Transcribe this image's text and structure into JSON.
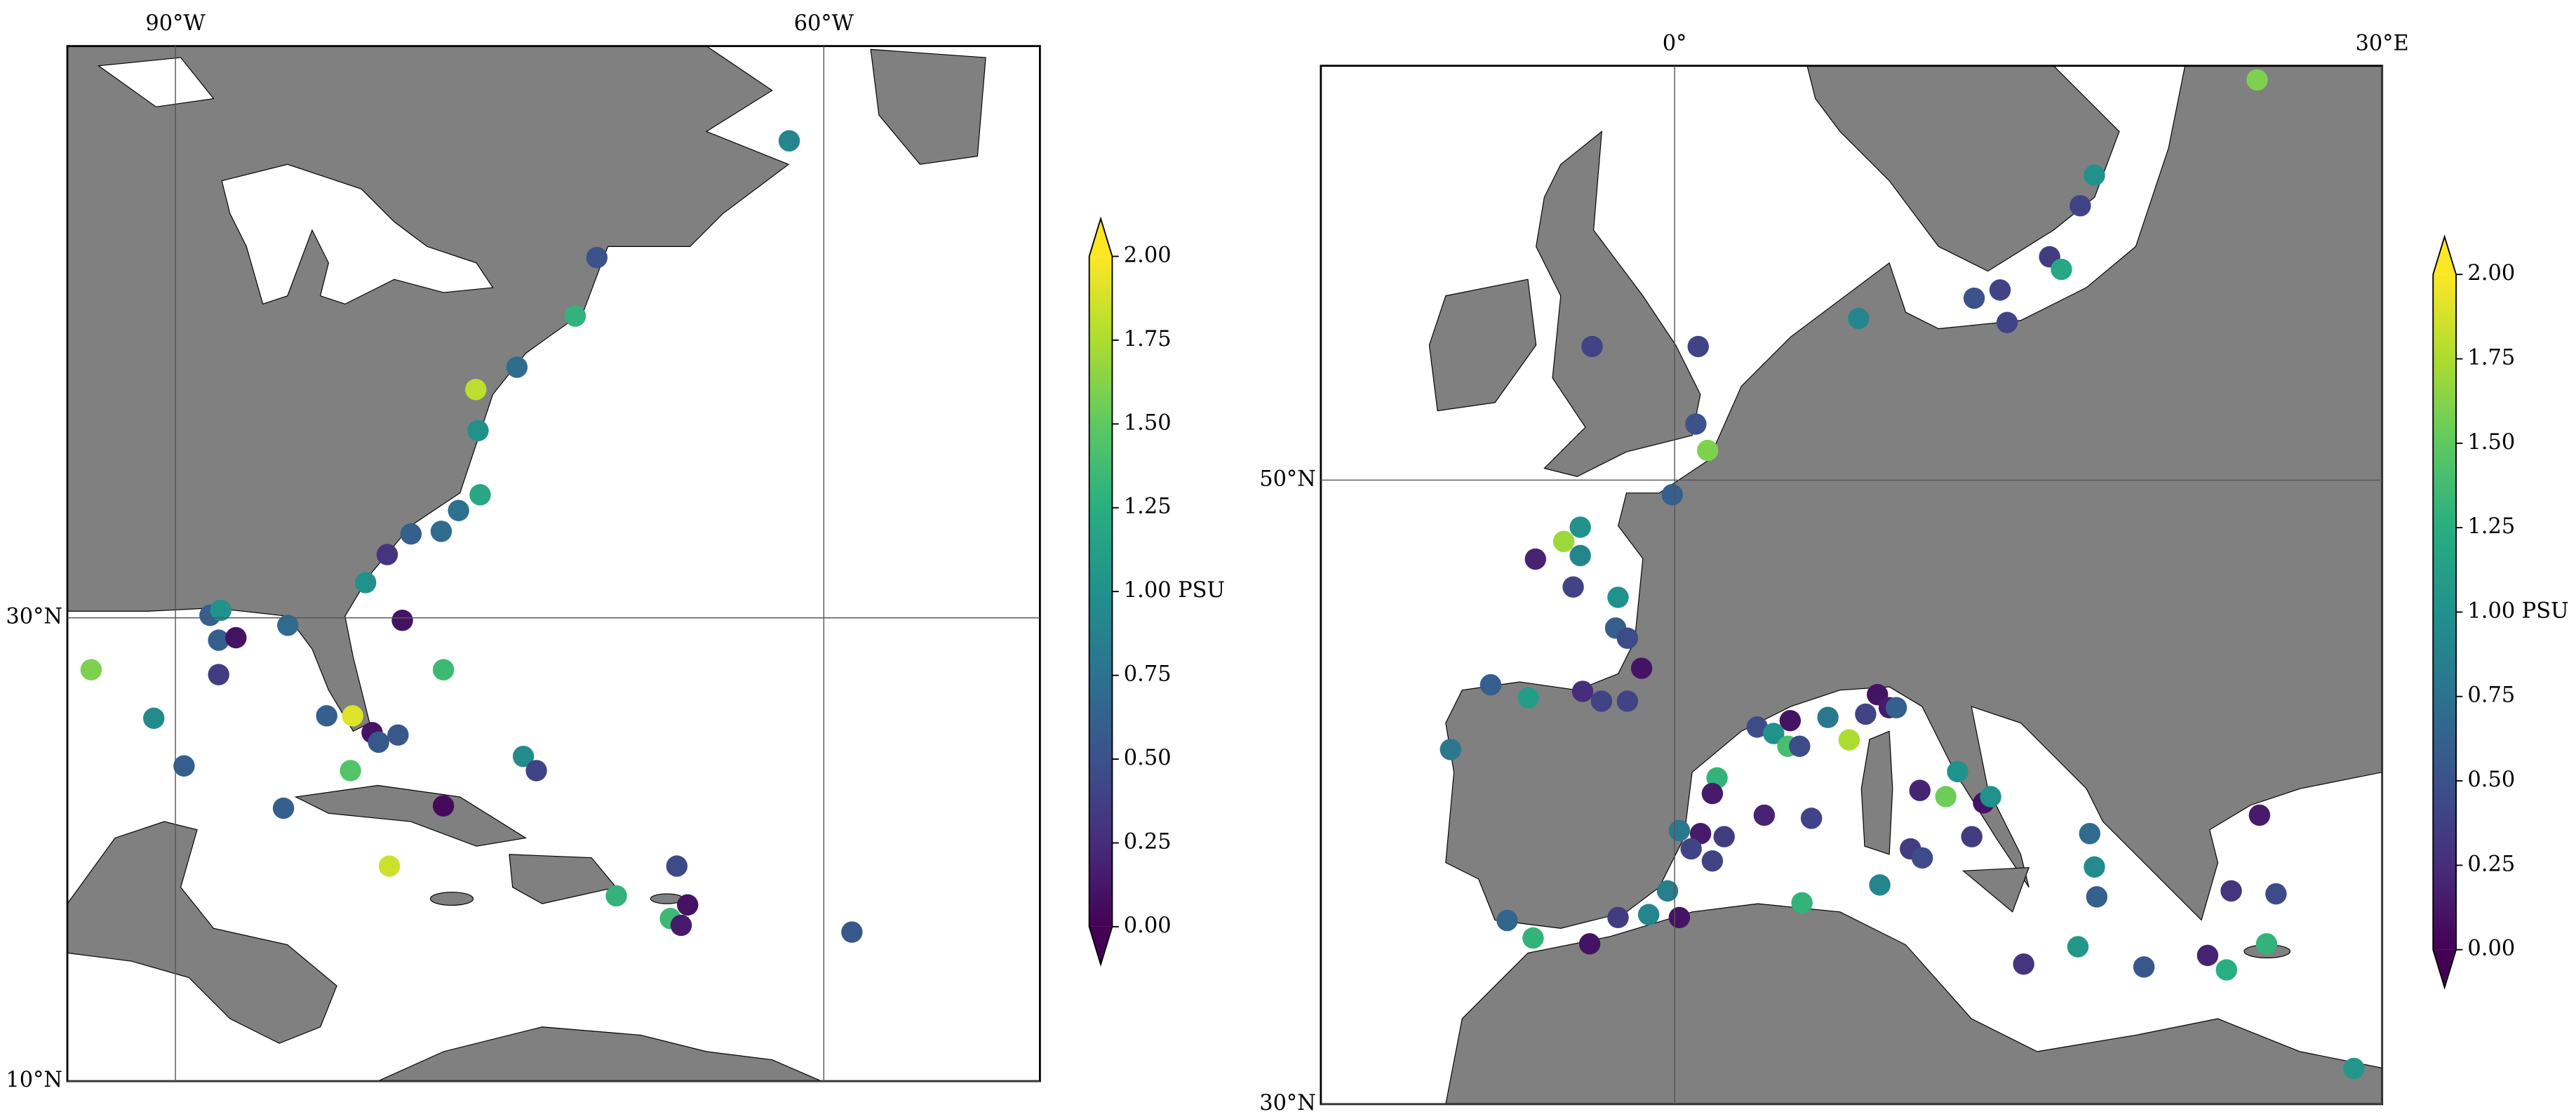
{
  "chart_data": [
    {
      "type": "scatter",
      "projection": "mercator",
      "colormap": "viridis",
      "grid": true,
      "xlim": [
        -95,
        -50
      ],
      "ylim": [
        10,
        50
      ],
      "xticks": [
        {
          "value": -90,
          "label": "90°W"
        },
        {
          "value": -60,
          "label": "60°W"
        }
      ],
      "yticks": [
        {
          "value": 10,
          "label": "10°N"
        },
        {
          "value": 30,
          "label": "30°N"
        }
      ],
      "x": [
        -61.6,
        -70.5,
        -71.5,
        -74.2,
        -76.1,
        -76.0,
        -75.9,
        -76.9,
        -77.7,
        -79.1,
        -80.2,
        -81.2,
        -93.9,
        -91.0,
        -89.6,
        -88.4,
        -88.0,
        -87.2,
        -84.8,
        -88.0,
        -79.5,
        -77.6,
        -83.0,
        -81.8,
        -80.9,
        -80.6,
        -79.7,
        -73.9,
        -73.3,
        -81.9,
        -85.0,
        -77.6,
        -80.1,
        -66.8,
        -69.6,
        -67.1,
        -66.3,
        -66.6,
        -58.7,
        -87.9
      ],
      "y": [
        47.1,
        43.3,
        41.3,
        39.5,
        38.7,
        37.2,
        34.8,
        34.2,
        33.4,
        33.3,
        32.5,
        31.4,
        27.9,
        25.9,
        23.9,
        30.1,
        29.1,
        29.2,
        29.7,
        27.7,
        29.9,
        27.9,
        26.0,
        26.0,
        25.3,
        24.9,
        25.2,
        24.3,
        23.7,
        23.7,
        22.1,
        22.2,
        19.6,
        19.6,
        18.3,
        17.3,
        17.9,
        17.0,
        16.7,
        30.3
      ],
      "values": [
        0.9,
        0.5,
        1.3,
        0.7,
        1.8,
        1.0,
        1.2,
        0.75,
        0.7,
        0.6,
        0.3,
        1.0,
        1.6,
        0.95,
        0.6,
        0.6,
        0.6,
        0.1,
        0.7,
        0.35,
        0.1,
        1.35,
        0.6,
        1.9,
        0.1,
        0.55,
        0.55,
        0.95,
        0.4,
        1.45,
        0.6,
        0.05,
        1.85,
        0.45,
        1.3,
        1.35,
        0.1,
        0.15,
        0.55,
        1.0
      ],
      "colorbar": {
        "label": "PSU",
        "lim": [
          0,
          2
        ],
        "extend": "both",
        "ticks": [
          {
            "value": 0,
            "label": "0.00"
          },
          0.25,
          {
            "value": 0.5,
            "label": "0.50"
          },
          0.75,
          {
            "value": 1,
            "label": "1.00"
          },
          1.25,
          {
            "value": 1.5,
            "label": "1.50"
          },
          1.75,
          {
            "value": 2,
            "label": "2.00"
          }
        ]
      }
    },
    {
      "type": "scatter",
      "projection": "mercator",
      "colormap": "viridis",
      "grid": true,
      "xlim": [
        -15,
        30
      ],
      "ylim": [
        30,
        60
      ],
      "xticks": [
        {
          "value": 0,
          "label": "0°"
        },
        {
          "value": 30,
          "label": "30°E"
        }
      ],
      "yticks": [
        {
          "value": 30,
          "label": "30°N"
        },
        {
          "value": 50,
          "label": "50°N"
        }
      ],
      "x": [
        24.7,
        17.8,
        17.2,
        15.9,
        16.4,
        13.8,
        12.7,
        14.1,
        7.8,
        -3.5,
        1.0,
        0.9,
        1.4,
        -0.1,
        -4.0,
        -4.7,
        -4.0,
        -5.9,
        -4.3,
        -2.4,
        -2.5,
        -2.0,
        -1.4,
        -7.8,
        -6.2,
        -3.9,
        -3.1,
        -2.0,
        -9.5,
        3.5,
        4.9,
        4.2,
        4.8,
        5.3,
        6.5,
        7.4,
        8.1,
        8.6,
        9.1,
        9.4,
        1.8,
        1.6,
        3.8,
        5.8,
        0.2,
        1.1,
        0.7,
        2.1,
        1.6,
        -0.3,
        -1.1,
        -2.4,
        0.2,
        -7.1,
        -3.6,
        -6.0,
        5.4,
        8.7,
        10.4,
        11.5,
        12.0,
        13.1,
        13.4,
        10.0,
        10.5,
        12.6,
        17.6,
        17.8,
        17.9,
        24.8,
        23.6,
        25.5,
        14.8,
        17.1,
        19.9,
        22.6,
        25.1,
        23.4,
        28.8
      ],
      "y": [
        59.7,
        57.6,
        56.9,
        55.7,
        55.4,
        54.9,
        54.7,
        54.1,
        54.2,
        53.5,
        53.5,
        51.5,
        50.8,
        49.6,
        48.7,
        48.3,
        47.9,
        47.8,
        47.0,
        46.7,
        45.8,
        45.5,
        44.6,
        44.1,
        43.7,
        43.9,
        43.6,
        43.6,
        42.1,
        42.8,
        43.0,
        42.6,
        42.2,
        42.2,
        43.1,
        42.4,
        43.2,
        43.8,
        43.4,
        43.4,
        41.2,
        40.7,
        40.0,
        39.9,
        39.5,
        39.4,
        38.9,
        39.3,
        38.5,
        37.5,
        36.7,
        36.6,
        36.6,
        36.5,
        35.7,
        35.9,
        37.1,
        37.7,
        40.8,
        40.6,
        41.4,
        40.4,
        40.6,
        38.9,
        38.6,
        39.3,
        39.4,
        38.3,
        37.3,
        40.0,
        37.5,
        37.4,
        35.0,
        35.6,
        34.9,
        35.3,
        35.7,
        34.8,
        31.3
      ],
      "values": [
        1.6,
        1.0,
        0.4,
        0.35,
        1.2,
        0.4,
        0.5,
        0.4,
        0.9,
        0.4,
        0.4,
        0.5,
        1.6,
        0.6,
        1.0,
        1.7,
        0.9,
        0.2,
        0.4,
        1.0,
        0.6,
        0.45,
        0.1,
        0.6,
        1.1,
        0.25,
        0.4,
        0.4,
        0.8,
        0.45,
        0.1,
        1.0,
        1.4,
        0.45,
        0.8,
        1.75,
        0.4,
        0.1,
        0.15,
        0.6,
        1.3,
        0.15,
        0.2,
        0.4,
        0.8,
        0.15,
        0.4,
        0.35,
        0.4,
        0.85,
        0.9,
        0.35,
        0.1,
        0.65,
        0.1,
        1.3,
        1.3,
        0.9,
        0.2,
        1.55,
        1.0,
        0.1,
        1.0,
        0.35,
        0.45,
        0.35,
        0.7,
        0.95,
        0.6,
        0.15,
        0.3,
        0.45,
        0.3,
        1.05,
        0.55,
        0.2,
        1.3,
        1.25,
        1.05
      ],
      "colorbar": {
        "label": "PSU",
        "lim": [
          0,
          2
        ],
        "extend": "both",
        "ticks": [
          {
            "value": 0,
            "label": "0.00"
          },
          0.25,
          {
            "value": 0.5,
            "label": "0.50"
          },
          0.75,
          {
            "value": 1,
            "label": "1.00"
          },
          1.25,
          {
            "value": 1.5,
            "label": "1.50"
          },
          1.75,
          {
            "value": 2,
            "label": "2.00"
          }
        ]
      }
    }
  ]
}
